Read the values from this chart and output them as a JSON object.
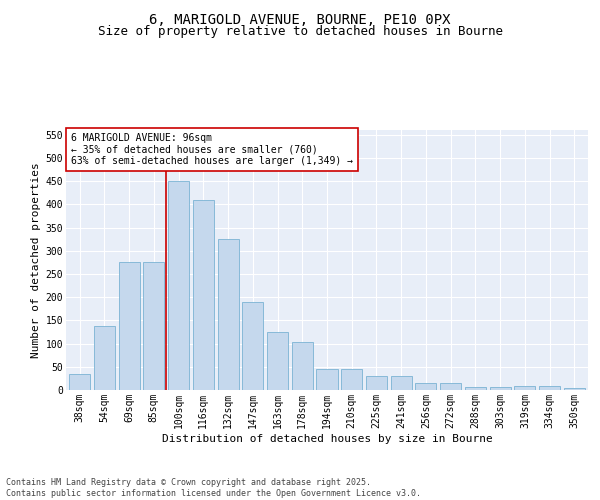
{
  "title_line1": "6, MARIGOLD AVENUE, BOURNE, PE10 0PX",
  "title_line2": "Size of property relative to detached houses in Bourne",
  "xlabel": "Distribution of detached houses by size in Bourne",
  "ylabel": "Number of detached properties",
  "categories": [
    "38sqm",
    "54sqm",
    "69sqm",
    "85sqm",
    "100sqm",
    "116sqm",
    "132sqm",
    "147sqm",
    "163sqm",
    "178sqm",
    "194sqm",
    "210sqm",
    "225sqm",
    "241sqm",
    "256sqm",
    "272sqm",
    "288sqm",
    "303sqm",
    "319sqm",
    "334sqm",
    "350sqm"
  ],
  "values": [
    35,
    137,
    275,
    275,
    450,
    410,
    325,
    190,
    125,
    103,
    46,
    45,
    31,
    31,
    16,
    16,
    7,
    6,
    8,
    9,
    4
  ],
  "bar_color": "#c5d8ed",
  "bar_edge_color": "#7ab3d4",
  "vline_color": "#cc0000",
  "vline_position": 3.5,
  "annotation_text": "6 MARIGOLD AVENUE: 96sqm\n← 35% of detached houses are smaller (760)\n63% of semi-detached houses are larger (1,349) →",
  "annotation_box_facecolor": "#ffffff",
  "annotation_box_edgecolor": "#cc0000",
  "ylim": [
    0,
    560
  ],
  "yticks": [
    0,
    50,
    100,
    150,
    200,
    250,
    300,
    350,
    400,
    450,
    500,
    550
  ],
  "bg_color": "#e8eef8",
  "grid_color": "#ffffff",
  "footer_text": "Contains HM Land Registry data © Crown copyright and database right 2025.\nContains public sector information licensed under the Open Government Licence v3.0.",
  "title_fontsize": 10,
  "subtitle_fontsize": 9,
  "ylabel_fontsize": 8,
  "xlabel_fontsize": 8,
  "tick_fontsize": 7,
  "annotation_fontsize": 7,
  "footer_fontsize": 6
}
